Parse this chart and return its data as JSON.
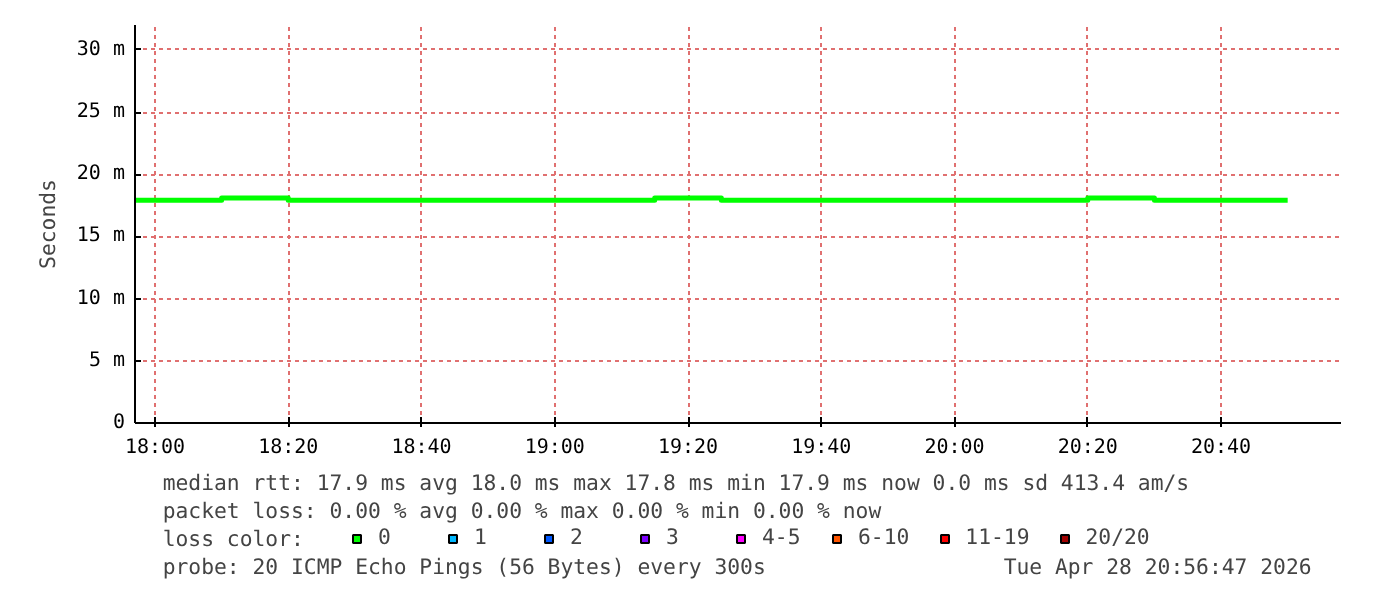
{
  "chart_data": {
    "type": "step",
    "ylabel": "Seconds",
    "x": [
      17.95,
      18.1667,
      18.3333,
      19.25,
      19.4167,
      20.3333,
      20.5,
      20.8333
    ],
    "series": [
      {
        "name": "0",
        "color": "#00ff00",
        "values": [
          17.9,
          18.1,
          17.9,
          18.1,
          17.9,
          18.1,
          17.9,
          17.9
        ]
      },
      {
        "name": "1",
        "color": "#00b8ff",
        "values": [
          null,
          null,
          null,
          null,
          null,
          null,
          null,
          null
        ]
      },
      {
        "name": "2",
        "color": "#0059ff",
        "values": [
          null,
          null,
          null,
          null,
          null,
          null,
          null,
          null
        ]
      },
      {
        "name": "3",
        "color": "#7e00ff",
        "values": [
          null,
          null,
          null,
          null,
          null,
          null,
          null,
          null
        ]
      },
      {
        "name": "4-5",
        "color": "#ff00ff",
        "values": [
          null,
          null,
          null,
          null,
          null,
          null,
          null,
          null
        ]
      },
      {
        "name": "6-10",
        "color": "#ff5500",
        "values": [
          null,
          null,
          null,
          null,
          null,
          null,
          null,
          null
        ]
      },
      {
        "name": "11-19",
        "color": "#ff0000",
        "values": [
          null,
          null,
          null,
          null,
          null,
          null,
          null,
          null
        ]
      },
      {
        "name": "20/20",
        "color": "#a10000",
        "values": [
          null,
          null,
          null,
          null,
          null,
          null,
          null,
          null
        ]
      }
    ],
    "legend_title": "loss color:",
    "legend": "bottom",
    "grid": true,
    "xlim": [
      17.95,
      20.9667
    ],
    "xticks": [
      {
        "value": 18,
        "label": "18:00"
      },
      {
        "value": 18.3333,
        "label": "18:20"
      },
      {
        "value": 18.6667,
        "label": "18:40"
      },
      {
        "value": 19,
        "label": "19:00"
      },
      {
        "value": 19.3333,
        "label": "19:20"
      },
      {
        "value": 19.6667,
        "label": "19:40"
      },
      {
        "value": 20,
        "label": "20:00"
      },
      {
        "value": 20.3333,
        "label": "20:20"
      },
      {
        "value": 20.6667,
        "label": "20:40"
      }
    ],
    "ylim": [
      0,
      32
    ],
    "yticks": [
      0,
      {
        "value": 5,
        "label": "5 m"
      },
      {
        "value": 10,
        "label": "10 m"
      },
      {
        "value": 15,
        "label": "15 m"
      },
      {
        "value": 20,
        "label": "20 m"
      },
      {
        "value": 25,
        "label": "25 m"
      },
      {
        "value": 30,
        "label": "30 m"
      }
    ],
    "annotations": [
      "median rtt:  17.9 ms avg  18.0 ms max  17.8 ms min  17.9 ms now  0.0 ms sd  413.4   am/s",
      "packet loss: 0.00 % avg  0.00 % max  0.00 % min  0.00 % now",
      "probe:       20 ICMP Echo Pings (56 Bytes) every 300s",
      "Tue Apr 28 20:56:47 2026"
    ]
  }
}
